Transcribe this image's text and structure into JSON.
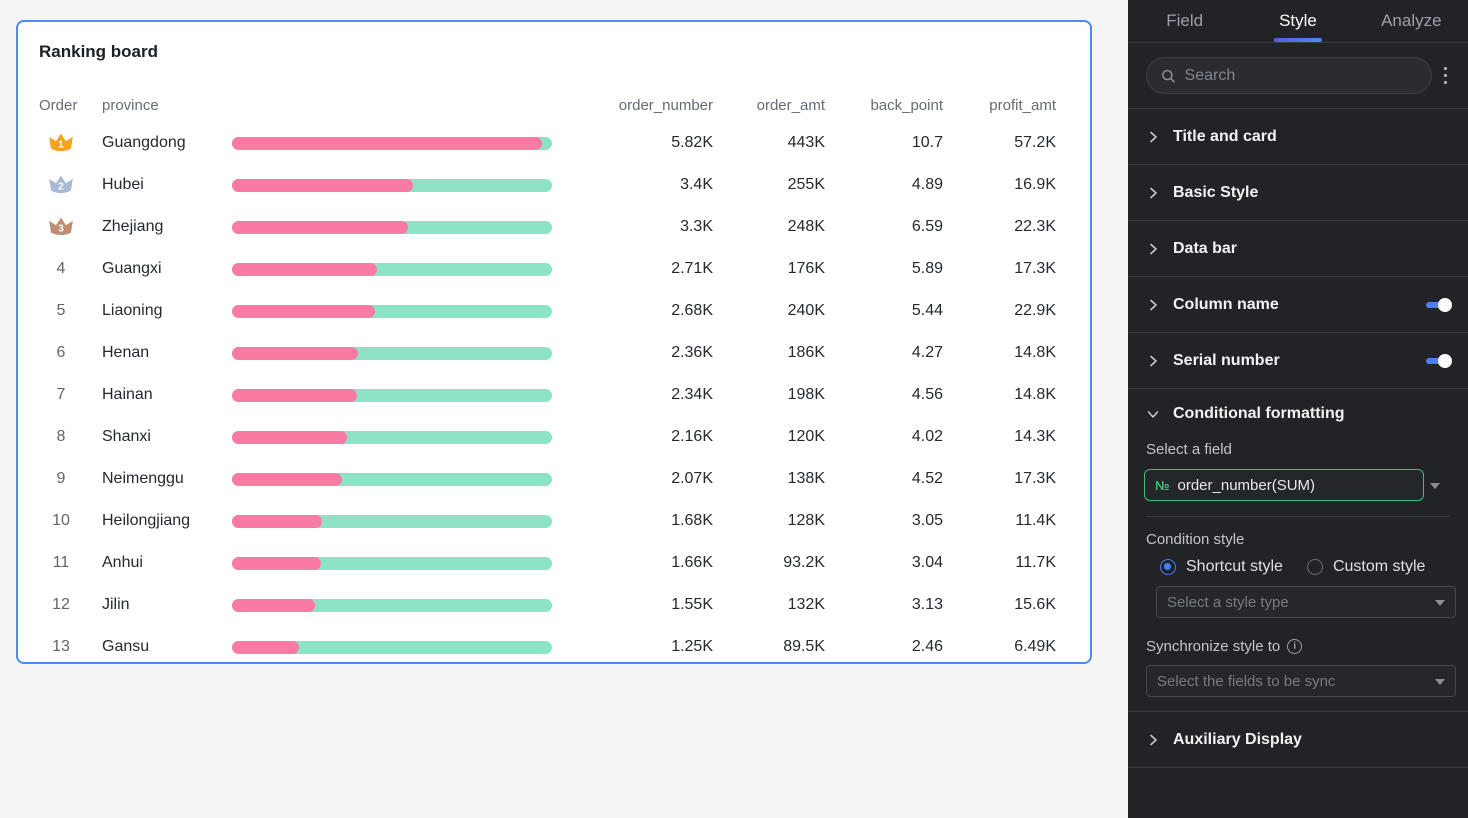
{
  "board": {
    "title": "Ranking board",
    "headers": {
      "order": "Order",
      "province": "province",
      "cols": [
        "order_number",
        "order_amt",
        "back_point",
        "profit_amt"
      ]
    },
    "bar": {
      "fill_color": "#F97BA4",
      "track_color": "#8DE3C6",
      "scale_max_label": "6K"
    },
    "crown_colors": {
      "crown-gold": "#F6A31B",
      "crown-silver": "#A9B8D3",
      "crown-bronze": "#BE8E72"
    },
    "rows": [
      {
        "rank": 1,
        "rank_icon": "crown-gold",
        "province": "Guangdong",
        "order_number": "5.82K",
        "order_amt": "443K",
        "back_point": "10.7",
        "profit_amt": "57.2K",
        "bar_pct": 97.0
      },
      {
        "rank": 2,
        "rank_icon": "crown-silver",
        "province": "Hubei",
        "order_number": "3.4K",
        "order_amt": "255K",
        "back_point": "4.89",
        "profit_amt": "16.9K",
        "bar_pct": 56.7
      },
      {
        "rank": 3,
        "rank_icon": "crown-bronze",
        "province": "Zhejiang",
        "order_number": "3.3K",
        "order_amt": "248K",
        "back_point": "6.59",
        "profit_amt": "22.3K",
        "bar_pct": 55.0
      },
      {
        "rank": 4,
        "province": "Guangxi",
        "order_number": "2.71K",
        "order_amt": "176K",
        "back_point": "5.89",
        "profit_amt": "17.3K",
        "bar_pct": 45.2
      },
      {
        "rank": 5,
        "province": "Liaoning",
        "order_number": "2.68K",
        "order_amt": "240K",
        "back_point": "5.44",
        "profit_amt": "22.9K",
        "bar_pct": 44.7
      },
      {
        "rank": 6,
        "province": "Henan",
        "order_number": "2.36K",
        "order_amt": "186K",
        "back_point": "4.27",
        "profit_amt": "14.8K",
        "bar_pct": 39.3
      },
      {
        "rank": 7,
        "province": "Hainan",
        "order_number": "2.34K",
        "order_amt": "198K",
        "back_point": "4.56",
        "profit_amt": "14.8K",
        "bar_pct": 39.0
      },
      {
        "rank": 8,
        "province": "Shanxi",
        "order_number": "2.16K",
        "order_amt": "120K",
        "back_point": "4.02",
        "profit_amt": "14.3K",
        "bar_pct": 36.0
      },
      {
        "rank": 9,
        "province": "Neimenggu",
        "order_number": "2.07K",
        "order_amt": "138K",
        "back_point": "4.52",
        "profit_amt": "17.3K",
        "bar_pct": 34.5
      },
      {
        "rank": 10,
        "province": "Heilongjiang",
        "order_number": "1.68K",
        "order_amt": "128K",
        "back_point": "3.05",
        "profit_amt": "11.4K",
        "bar_pct": 28.0
      },
      {
        "rank": 11,
        "province": "Anhui",
        "order_number": "1.66K",
        "order_amt": "93.2K",
        "back_point": "3.04",
        "profit_amt": "11.7K",
        "bar_pct": 27.7
      },
      {
        "rank": 12,
        "province": "Jilin",
        "order_number": "1.55K",
        "order_amt": "132K",
        "back_point": "3.13",
        "profit_amt": "15.6K",
        "bar_pct": 25.8
      },
      {
        "rank": 13,
        "province": "Gansu",
        "order_number": "1.25K",
        "order_amt": "89.5K",
        "back_point": "2.46",
        "profit_amt": "6.49K",
        "bar_pct": 20.8
      }
    ]
  },
  "panel": {
    "tabs": [
      {
        "label": "Field",
        "active": false
      },
      {
        "label": "Style",
        "active": true
      },
      {
        "label": "Analyze",
        "active": false
      }
    ],
    "search_placeholder": "Search",
    "kebab_icon": "more-vertical-icon",
    "sections": [
      {
        "label": "Title and card"
      },
      {
        "label": "Basic Style"
      },
      {
        "label": "Data bar"
      },
      {
        "label": "Column name",
        "toggle": "on"
      },
      {
        "label": "Serial number",
        "toggle": "on"
      }
    ],
    "conditional": {
      "header": "Conditional formatting",
      "select_field_label": "Select a field",
      "field_prefix": "№",
      "field_value": "order_number(SUM)",
      "condition_style_label": "Condition style",
      "radio_shortcut": "Shortcut style",
      "radio_custom": "Custom style",
      "style_type_placeholder": "Select a style type",
      "sync_label": "Synchronize style to",
      "sync_placeholder": "Select the fields to be sync"
    },
    "auxiliary": {
      "label": "Auxiliary Display"
    },
    "colors": {
      "accent_blue": "#4C7EF5",
      "accent_green": "#3FBE7B",
      "underline_gradient": [
        "#5B5BE0",
        "#4B8BF0"
      ]
    }
  }
}
